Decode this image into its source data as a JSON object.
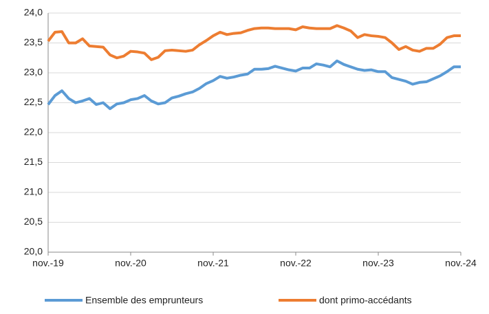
{
  "chart_data": {
    "type": "line",
    "categories": [
      "nov.-19",
      null,
      null,
      null,
      null,
      null,
      null,
      null,
      null,
      null,
      null,
      null,
      "nov.-20",
      null,
      null,
      null,
      null,
      null,
      null,
      null,
      null,
      null,
      null,
      null,
      "nov.-21",
      null,
      null,
      null,
      null,
      null,
      null,
      null,
      null,
      null,
      null,
      null,
      "nov.-22",
      null,
      null,
      null,
      null,
      null,
      null,
      null,
      null,
      null,
      null,
      null,
      "nov.-23",
      null,
      null,
      null,
      null,
      null,
      null,
      null,
      null,
      null,
      null,
      null,
      "nov.-24"
    ],
    "series": [
      {
        "name": "Ensemble des emprunteurs",
        "color": "#5b9bd5",
        "values": [
          22.47,
          22.62,
          22.7,
          22.57,
          22.5,
          22.53,
          22.57,
          22.47,
          22.5,
          22.4,
          22.48,
          22.5,
          22.55,
          22.57,
          22.62,
          22.53,
          22.48,
          22.5,
          22.58,
          22.61,
          22.65,
          22.68,
          22.74,
          22.82,
          22.87,
          22.94,
          22.91,
          22.93,
          22.96,
          22.98,
          23.06,
          23.06,
          23.07,
          23.11,
          23.08,
          23.05,
          23.03,
          23.08,
          23.08,
          23.15,
          23.13,
          23.1,
          23.2,
          23.14,
          23.1,
          23.06,
          23.04,
          23.05,
          23.02,
          23.02,
          22.92,
          22.89,
          22.86,
          22.81,
          22.84,
          22.85,
          22.9,
          22.95,
          23.02,
          23.1,
          23.1
        ]
      },
      {
        "name": "dont primo-accédants",
        "color": "#ed7d31",
        "values": [
          23.53,
          23.68,
          23.69,
          23.5,
          23.5,
          23.57,
          23.45,
          23.44,
          23.43,
          23.3,
          23.25,
          23.28,
          23.36,
          23.35,
          23.33,
          23.22,
          23.26,
          23.37,
          23.38,
          23.37,
          23.36,
          23.38,
          23.47,
          23.54,
          23.62,
          23.68,
          23.64,
          23.66,
          23.67,
          23.71,
          23.74,
          23.75,
          23.75,
          23.74,
          23.74,
          23.74,
          23.72,
          23.77,
          23.75,
          23.74,
          23.74,
          23.74,
          23.79,
          23.75,
          23.7,
          23.59,
          23.64,
          23.62,
          23.61,
          23.59,
          23.5,
          23.39,
          23.44,
          23.38,
          23.36,
          23.41,
          23.41,
          23.48,
          23.59,
          23.62,
          23.62
        ]
      }
    ],
    "ylim": [
      20,
      24
    ],
    "yticks": [
      {
        "value": 20,
        "label": "20,0"
      },
      {
        "value": 20.5,
        "label": "20,5"
      },
      {
        "value": 21,
        "label": "21,0"
      },
      {
        "value": 21.5,
        "label": "21,5"
      },
      {
        "value": 22,
        "label": "22,0"
      },
      {
        "value": 22.5,
        "label": "22,5"
      },
      {
        "value": 23,
        "label": "23,0"
      },
      {
        "value": 23.5,
        "label": "23,5"
      },
      {
        "value": 24,
        "label": "24,0"
      }
    ],
    "grid": true
  }
}
